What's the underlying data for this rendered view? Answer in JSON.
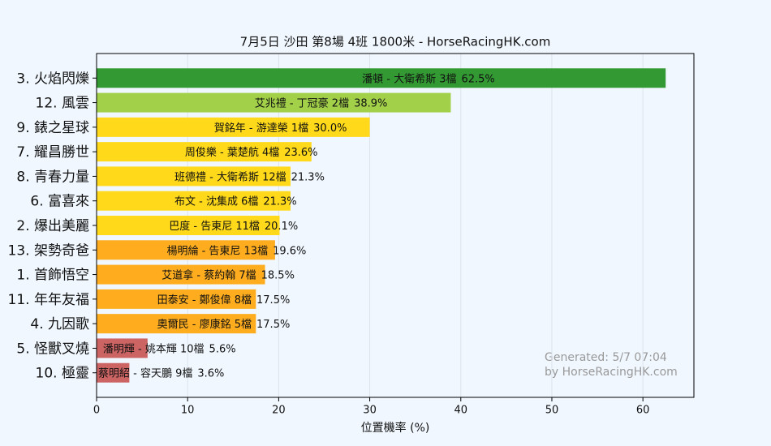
{
  "chart_data": {
    "type": "bar",
    "orientation": "horizontal",
    "title": "7月5日  沙田  第8場  4班  1800米 - HorseRacingHK.com",
    "xlabel": "位置機率 (%)",
    "categories": [
      "3. 火焰閃爍",
      "12. 風雲",
      "9. 錶之星球",
      "7. 耀昌勝世",
      "8. 青春力量",
      "6. 富喜來",
      "2. 爆出美麗",
      "13. 架勢奇爸",
      "1. 首飾悟空",
      "11. 年年友福",
      "4. 九因歌",
      "5. 怪獸叉燒",
      "10. 極靈"
    ],
    "values": [
      62.5,
      38.9,
      30.0,
      23.6,
      21.3,
      21.3,
      20.1,
      19.6,
      18.5,
      17.5,
      17.5,
      5.6,
      3.6
    ],
    "value_labels": [
      "62.5%",
      "38.9%",
      "30.0%",
      "23.6%",
      "21.3%",
      "21.3%",
      "20.1%",
      "19.6%",
      "18.5%",
      "17.5%",
      "17.5%",
      "5.6%",
      "3.6%"
    ],
    "bar_labels": [
      "潘頓 - 大衛希斯 3檔",
      "艾兆禮 - 丁冠豪 2檔",
      "賀銘年 - 游達榮 1檔",
      "周俊樂 - 葉楚航 4檔",
      "班德禮 - 大衛希斯 12檔",
      "布文 - 沈集成 6檔",
      "巴度 - 告東尼 11檔",
      "楊明綸 - 告東尼 13檔",
      "艾道拿 - 蔡約翰 7檔",
      "田泰安 - 鄭俊偉 8檔",
      "奧爾民 - 廖康銘 5檔",
      "潘明輝 - 姚本輝 10檔",
      "蔡明紹 - 容天鵬 9檔"
    ],
    "colors": [
      "#339933",
      "#a2d149",
      "#ffd91a",
      "#ffd91a",
      "#ffd91a",
      "#ffd91a",
      "#ffd91a",
      "#ffad1f",
      "#ffad1f",
      "#ffad1f",
      "#ffad1f",
      "#cd6464",
      "#cd6464"
    ],
    "xlim": [
      0,
      65.6
    ],
    "xticks": [
      0,
      10,
      20,
      30,
      40,
      50,
      60
    ],
    "grid": true,
    "annotation": [
      "Generated: 5/7 07:04",
      "by HorseRacingHK.com"
    ]
  }
}
